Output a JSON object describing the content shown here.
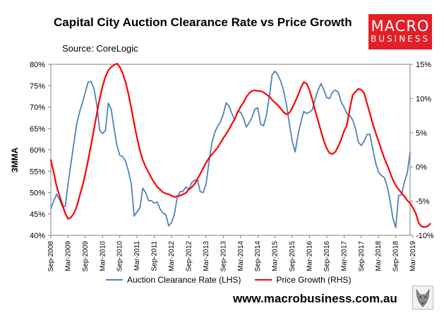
{
  "header": {
    "title": "Capital City Auction Clearance Rate vs Price Growth",
    "source": "Source: CoreLogic"
  },
  "logo": {
    "line1": "MACRO",
    "line2": "BUSINESS",
    "color": "#e41e26"
  },
  "footer": {
    "website": "www.macrobusiness.com.au",
    "wolf_icon": "wolf-head-icon"
  },
  "chart_data": {
    "type": "line",
    "ylabel": "3MMA",
    "x_tick_labels": [
      "Sep-2008",
      "Mar-2009",
      "Sep-2009",
      "Mar-2010",
      "Sep-2010",
      "Mar-2011",
      "Sep-2011",
      "Mar-2012",
      "Sep-2012",
      "Mar-2013",
      "Sep-2013",
      "Mar-2014",
      "Sep-2014",
      "Mar-2015",
      "Sep-2015",
      "Mar-2016",
      "Sep-2016",
      "Mar-2017",
      "Sep-2017",
      "Mar-2018",
      "Sep-2018",
      "Mar-2019"
    ],
    "x_range": [
      "Sep-2008",
      "Aug-2019"
    ],
    "y_left": {
      "min": 40,
      "max": 80,
      "step": 5,
      "tick_labels": [
        "40%",
        "45%",
        "50%",
        "55%",
        "60%",
        "65%",
        "70%",
        "75%",
        "80%"
      ]
    },
    "y_right": {
      "min": -10,
      "max": 15,
      "step": 5,
      "tick_labels": [
        "-10%",
        "-5%",
        "0%",
        "5%",
        "10%",
        "15%"
      ]
    },
    "grid": false,
    "legend_position": "bottom",
    "series": [
      {
        "name": "Auction Clearance Rate (LHS)",
        "axis": "left",
        "color": "#4f81bd",
        "values": [
          46.3,
          48,
          49.6,
          48.4,
          46.7,
          46.8,
          52,
          56.8,
          61.5,
          66,
          68.8,
          71,
          73.5,
          75.8,
          76,
          74.3,
          70.5,
          64.6,
          63.8,
          64.5,
          70.9,
          69.5,
          65,
          61,
          58.7,
          58.4,
          57.4,
          55,
          52,
          44.5,
          45.5,
          46.4,
          51,
          50,
          48.1,
          48.1,
          47.5,
          47.8,
          46.2,
          45.2,
          44.9,
          42.2,
          43,
          45,
          49,
          50.2,
          50.3,
          51.3,
          50.7,
          52.3,
          52.9,
          53,
          50.2,
          50,
          52,
          57,
          61.5,
          64,
          65.5,
          66.5,
          68.3,
          71,
          70.2,
          68.5,
          67,
          69,
          68.8,
          67.5,
          65.3,
          66.3,
          67.6,
          69.5,
          69.8,
          66,
          65.6,
          68,
          72.4,
          77.5,
          78.4,
          77.5,
          76,
          73.8,
          70.5,
          66,
          62,
          59.5,
          63.5,
          66.5,
          69,
          68.5,
          68.8,
          69.4,
          72,
          74,
          75.5,
          74,
          72.2,
          72,
          73.5,
          74,
          73.5,
          71.2,
          70,
          68.5,
          68,
          67,
          65,
          61.8,
          61,
          62,
          63.6,
          63.6,
          60.2,
          57,
          54.8,
          54,
          53.5,
          51.5,
          48.2,
          44,
          41.8,
          49.3,
          49.5,
          52.5,
          54.5,
          59.4
        ]
      },
      {
        "name": "Price Growth (RHS)",
        "axis": "right",
        "color": "#ff0000",
        "values": [
          1,
          -0.8,
          -2.8,
          -4.2,
          -5.5,
          -6.8,
          -7.6,
          -7.4,
          -6.8,
          -5.8,
          -4.3,
          -2.8,
          -1,
          1,
          3.2,
          5.5,
          7.8,
          10,
          11.8,
          13.2,
          14.1,
          14.6,
          14.9,
          15.1,
          14.6,
          13.7,
          12.4,
          10.7,
          8.6,
          6.3,
          4.2,
          2.4,
          1,
          0,
          -0.8,
          -1.6,
          -2.3,
          -2.9,
          -3.3,
          -3.7,
          -3.9,
          -4,
          -4.2,
          -4.4,
          -4.3,
          -4.2,
          -4,
          -3.8,
          -3.3,
          -3,
          -2.5,
          -1.8,
          -1,
          -0.2,
          0.6,
          1.3,
          1.8,
          2.3,
          2.8,
          3.5,
          4.2,
          4.8,
          5.5,
          6.3,
          7,
          8,
          8.8,
          9.4,
          10.2,
          10.8,
          11.1,
          11.2,
          11.1,
          11.1,
          10.9,
          10.6,
          10.3,
          9.8,
          9.4,
          9,
          8.5,
          8,
          7.7,
          7.9,
          8.6,
          9.5,
          10.5,
          11.6,
          12.4,
          12.2,
          11.2,
          9.8,
          8.2,
          6.7,
          5.2,
          3.8,
          2.7,
          2,
          1.9,
          2.2,
          3,
          4,
          5.2,
          6.1,
          8.5,
          10.5,
          11,
          11.4,
          11.3,
          10.8,
          9.3,
          7.8,
          6.3,
          5,
          3.8,
          2.5,
          1.3,
          0.3,
          -0.8,
          -1.9,
          -2.7,
          -3.3,
          -3.8,
          -4.3,
          -4.9,
          -5.3,
          -6,
          -6.8,
          -8.2,
          -8.7,
          -8.8,
          -8.7,
          -8.3
        ]
      }
    ]
  }
}
